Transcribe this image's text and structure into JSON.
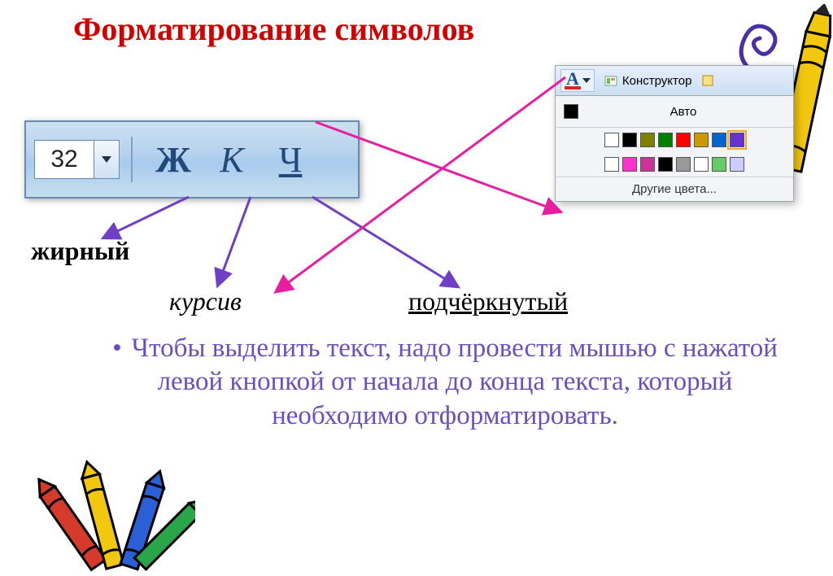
{
  "title": "Форматирование символов",
  "toolbar": {
    "fontsize_value": "32",
    "bold_label": "Ж",
    "italic_label": "К",
    "underline_label": "Ч"
  },
  "labels": {
    "bold": "жирный",
    "italic": "курсив",
    "underline": "подчёркнутый"
  },
  "colorpanel": {
    "designer_label": "Конструктор",
    "auto_label": "Авто",
    "auto_swatch": "#000000",
    "row1": [
      "#ffffff",
      "#000000",
      "#808000",
      "#008000",
      "#ff0000",
      "#cc9900",
      "#0066cc",
      "#6633cc"
    ],
    "row1_selected_index": 7,
    "row2": [
      "#ffffff",
      "#ff33cc",
      "#cc3399",
      "#000000",
      "#999999",
      "#ffffff",
      "#66cc66",
      "#ccccff"
    ],
    "more_label": "Другие цвета..."
  },
  "bullet_text": "Чтобы выделить текст, надо провести мышью с нажатой левой кнопкой от начала до конца текста, который необходимо отформатировать.",
  "arrows": {
    "color_violet": "#6f3fc5",
    "color_magenta": "#e81ea0"
  },
  "decor": {
    "crayon_yellow": "#f2c80f",
    "crayon_red": "#d63a2a",
    "crayon_blue": "#2a5fd6",
    "crayon_green": "#2aa64a",
    "outline": "#000000",
    "spiral": "#4a2fa8"
  }
}
